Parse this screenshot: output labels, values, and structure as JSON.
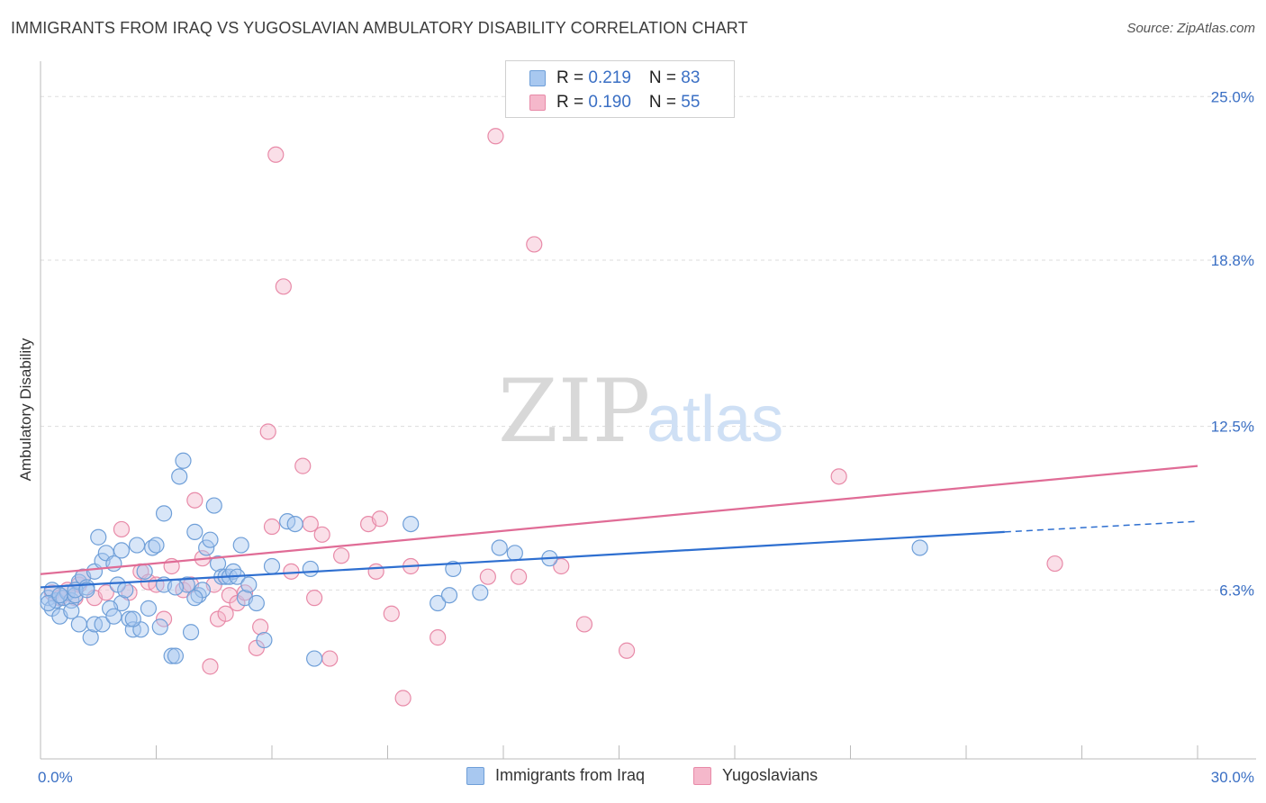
{
  "title": "IMMIGRANTS FROM IRAQ VS YUGOSLAVIAN AMBULATORY DISABILITY CORRELATION CHART",
  "source": "Source: ZipAtlas.com",
  "watermark": {
    "zip": "ZIP",
    "atlas": "atlas"
  },
  "legend": {
    "rows": [
      {
        "r_label": "R = ",
        "r_value": "0.219",
        "n_label": "N = ",
        "n_value": "83"
      },
      {
        "r_label": "R = ",
        "r_value": "0.190",
        "n_label": "N = ",
        "n_value": "55"
      }
    ]
  },
  "colors": {
    "blue_fill": "#a8c8f0",
    "blue_stroke": "#6f9fd8",
    "blue_line": "#2e6fd0",
    "pink_fill": "#f5b8cb",
    "pink_stroke": "#e88aa8",
    "pink_line": "#e06c96",
    "grid": "#dddddd",
    "axis_text": "#3a6fc4"
  },
  "chart_data": {
    "type": "scatter",
    "title": "IMMIGRANTS FROM IRAQ VS YUGOSLAVIAN AMBULATORY DISABILITY CORRELATION CHART",
    "xlabel": "",
    "ylabel": "Ambulatory Disability",
    "xlim": [
      0,
      30
    ],
    "ylim": [
      0,
      26
    ],
    "x_tick_labels": [
      "0.0%",
      "30.0%"
    ],
    "y_ticks": [
      6.3,
      12.5,
      18.8,
      25.0
    ],
    "y_tick_labels": [
      "6.3%",
      "12.5%",
      "18.8%",
      "25.0%"
    ],
    "legend_position": "top-center",
    "series": [
      {
        "name": "Immigrants from Iraq",
        "R": 0.219,
        "N": 83,
        "trend": {
          "x_start": 0,
          "y_start": 6.4,
          "x_solid_end": 25.0,
          "y_solid_end": 8.5,
          "x_dash_end": 30.0,
          "y_dash_end": 8.9
        },
        "points": [
          [
            0.2,
            6.0
          ],
          [
            0.3,
            5.6
          ],
          [
            0.4,
            5.9
          ],
          [
            0.5,
            5.3
          ],
          [
            0.3,
            6.3
          ],
          [
            0.6,
            6.0
          ],
          [
            0.7,
            6.2
          ],
          [
            0.8,
            5.9
          ],
          [
            0.9,
            6.1
          ],
          [
            0.8,
            5.5
          ],
          [
            1.0,
            6.6
          ],
          [
            1.1,
            6.8
          ],
          [
            1.2,
            6.4
          ],
          [
            1.4,
            7.0
          ],
          [
            1.5,
            8.3
          ],
          [
            1.6,
            7.4
          ],
          [
            1.7,
            7.7
          ],
          [
            1.9,
            7.3
          ],
          [
            2.0,
            6.5
          ],
          [
            2.1,
            5.8
          ],
          [
            1.0,
            5.0
          ],
          [
            1.3,
            4.5
          ],
          [
            1.4,
            5.0
          ],
          [
            1.6,
            5.0
          ],
          [
            1.8,
            5.6
          ],
          [
            1.9,
            5.3
          ],
          [
            2.1,
            7.8
          ],
          [
            2.2,
            6.3
          ],
          [
            2.3,
            5.2
          ],
          [
            2.4,
            4.8
          ],
          [
            2.5,
            8.0
          ],
          [
            2.6,
            4.8
          ],
          [
            2.7,
            7.0
          ],
          [
            2.8,
            5.6
          ],
          [
            2.9,
            7.9
          ],
          [
            3.0,
            8.0
          ],
          [
            3.1,
            4.9
          ],
          [
            3.2,
            6.5
          ],
          [
            3.2,
            9.2
          ],
          [
            3.4,
            3.8
          ],
          [
            3.5,
            3.8
          ],
          [
            3.6,
            10.6
          ],
          [
            3.7,
            11.2
          ],
          [
            3.8,
            6.5
          ],
          [
            3.9,
            4.7
          ],
          [
            4.0,
            8.5
          ],
          [
            4.1,
            6.1
          ],
          [
            4.2,
            6.3
          ],
          [
            4.3,
            7.9
          ],
          [
            4.4,
            8.2
          ],
          [
            4.5,
            9.5
          ],
          [
            4.6,
            7.3
          ],
          [
            4.7,
            6.8
          ],
          [
            4.8,
            6.8
          ],
          [
            4.9,
            6.8
          ],
          [
            5.0,
            7.0
          ],
          [
            5.1,
            6.8
          ],
          [
            5.2,
            8.0
          ],
          [
            5.3,
            6.0
          ],
          [
            5.4,
            6.5
          ],
          [
            5.6,
            5.8
          ],
          [
            5.8,
            4.4
          ],
          [
            6.0,
            7.2
          ],
          [
            6.4,
            8.9
          ],
          [
            6.6,
            8.8
          ],
          [
            7.0,
            7.1
          ],
          [
            7.1,
            3.7
          ],
          [
            9.6,
            8.8
          ],
          [
            10.3,
            5.8
          ],
          [
            10.6,
            6.1
          ],
          [
            10.7,
            7.1
          ],
          [
            11.4,
            6.2
          ],
          [
            11.9,
            7.9
          ],
          [
            12.3,
            7.7
          ],
          [
            13.2,
            7.5
          ],
          [
            22.8,
            7.9
          ],
          [
            0.2,
            5.8
          ],
          [
            0.5,
            6.1
          ],
          [
            0.9,
            6.3
          ],
          [
            1.2,
            6.3
          ],
          [
            2.4,
            5.2
          ],
          [
            3.5,
            6.4
          ],
          [
            4.0,
            6.0
          ]
        ]
      },
      {
        "name": "Yugoslavians",
        "R": 0.19,
        "N": 55,
        "trend": {
          "x_start": 0,
          "y_start": 6.9,
          "x_end": 30.0,
          "y_end": 11.0
        },
        "points": [
          [
            0.3,
            6.2
          ],
          [
            0.5,
            6.0
          ],
          [
            0.7,
            6.3
          ],
          [
            0.9,
            6.0
          ],
          [
            1.0,
            6.5
          ],
          [
            1.1,
            6.8
          ],
          [
            1.4,
            6.0
          ],
          [
            1.7,
            6.2
          ],
          [
            2.1,
            8.6
          ],
          [
            2.3,
            6.2
          ],
          [
            2.6,
            7.0
          ],
          [
            2.8,
            6.6
          ],
          [
            3.0,
            6.5
          ],
          [
            3.2,
            5.2
          ],
          [
            3.4,
            7.2
          ],
          [
            3.7,
            6.3
          ],
          [
            3.9,
            6.5
          ],
          [
            4.0,
            9.7
          ],
          [
            4.2,
            7.5
          ],
          [
            4.4,
            3.4
          ],
          [
            4.5,
            6.5
          ],
          [
            4.6,
            5.2
          ],
          [
            4.8,
            5.4
          ],
          [
            4.9,
            6.1
          ],
          [
            5.1,
            5.8
          ],
          [
            5.3,
            6.2
          ],
          [
            5.6,
            4.1
          ],
          [
            5.7,
            4.9
          ],
          [
            5.9,
            12.3
          ],
          [
            6.0,
            8.7
          ],
          [
            6.5,
            7.0
          ],
          [
            6.8,
            11.0
          ],
          [
            7.0,
            8.8
          ],
          [
            7.1,
            6.0
          ],
          [
            7.3,
            8.4
          ],
          [
            7.5,
            3.7
          ],
          [
            7.8,
            7.6
          ],
          [
            8.5,
            8.8
          ],
          [
            8.7,
            7.0
          ],
          [
            8.8,
            9.0
          ],
          [
            9.1,
            5.4
          ],
          [
            9.4,
            2.2
          ],
          [
            9.6,
            7.2
          ],
          [
            10.3,
            4.5
          ],
          [
            11.6,
            6.8
          ],
          [
            11.8,
            23.5
          ],
          [
            12.4,
            6.8
          ],
          [
            12.8,
            19.4
          ],
          [
            13.5,
            7.2
          ],
          [
            14.1,
            5.0
          ],
          [
            15.2,
            4.0
          ],
          [
            20.7,
            10.6
          ],
          [
            26.3,
            7.3
          ],
          [
            6.3,
            17.8
          ],
          [
            6.1,
            22.8
          ]
        ]
      }
    ]
  }
}
